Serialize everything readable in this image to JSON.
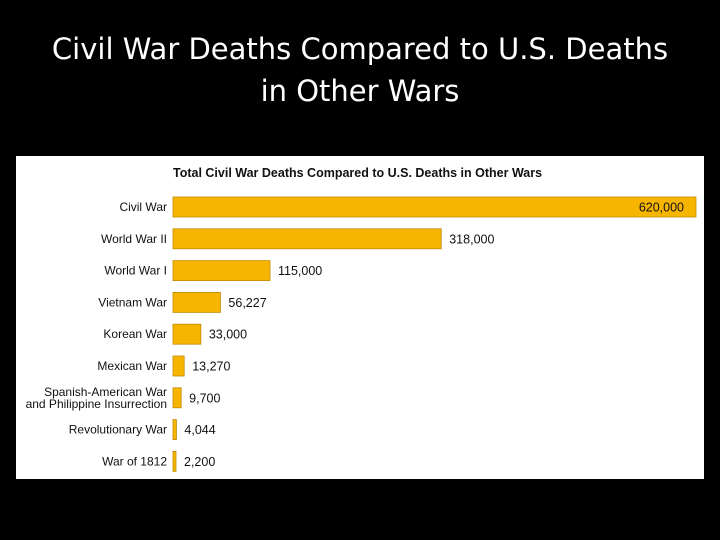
{
  "slide": {
    "title_line1": "Civil War Deaths Compared to U.S. Deaths",
    "title_line2": "in Other Wars"
  },
  "colors": {
    "background": "#000000",
    "slide_title": "#ffffff",
    "panel": "#ffffff",
    "bar_fill": "#f7b500",
    "bar_stroke": "#c08a00",
    "text": "#111111"
  },
  "chart_data": {
    "type": "bar",
    "orientation": "horizontal",
    "title": "Total Civil War Deaths Compared to U.S. Deaths in Other Wars",
    "categories": [
      [
        "Civil War"
      ],
      [
        "World War II"
      ],
      [
        "World War I"
      ],
      [
        "Vietnam War"
      ],
      [
        "Korean War"
      ],
      [
        "Mexican War"
      ],
      [
        "Spanish-American War",
        "and Philippine Insurrection"
      ],
      [
        "Revolutionary War"
      ],
      [
        "War of 1812"
      ]
    ],
    "values": [
      620000,
      318000,
      115000,
      56227,
      33000,
      13270,
      9700,
      4044,
      2200
    ],
    "value_labels": [
      "620,000",
      "318,000",
      "115,000",
      "56,227",
      "33,000",
      "13,270",
      "9,700",
      "4,044",
      "2,200"
    ],
    "xlim": [
      0,
      620000
    ],
    "grid": false,
    "legend": "none"
  }
}
